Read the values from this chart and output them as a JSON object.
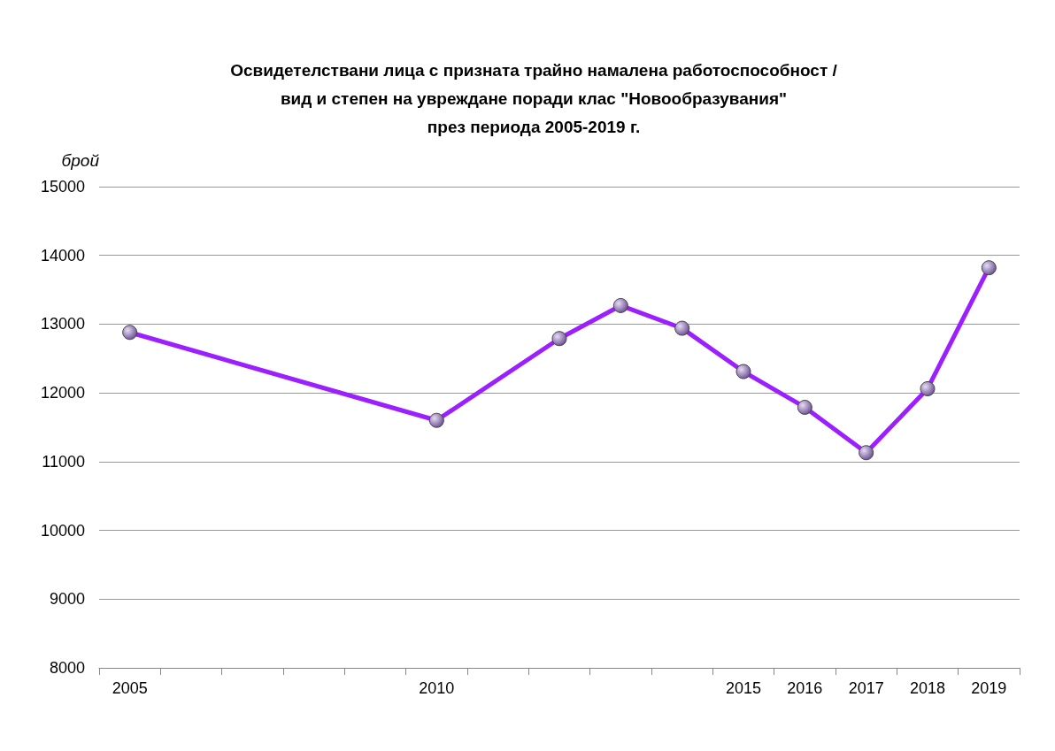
{
  "chart_data": {
    "type": "line",
    "title": "Освидетелствани лица с призната трайно намалена работоспособност /\nвид и степен на увреждане поради клас \"Новообразувания\"\nпрез периода 2005-2019 г.",
    "ylabel": "брой",
    "categories": [
      "2005",
      null,
      null,
      null,
      null,
      "2010",
      null,
      null,
      null,
      null,
      "2015",
      "2016",
      "2017",
      "2018",
      "2019"
    ],
    "series": [
      {
        "color": "#9b1fff",
        "values": [
          12880,
          null,
          null,
          null,
          null,
          11600,
          null,
          12790,
          13270,
          12940,
          12310,
          11790,
          11130,
          12060,
          13820
        ]
      }
    ],
    "ylim": [
      8000,
      15000
    ],
    "yticks": [
      8000,
      9000,
      10000,
      11000,
      12000,
      13000,
      14000,
      15000
    ],
    "grid": "y",
    "marker": "circle",
    "line_style": "solid"
  }
}
